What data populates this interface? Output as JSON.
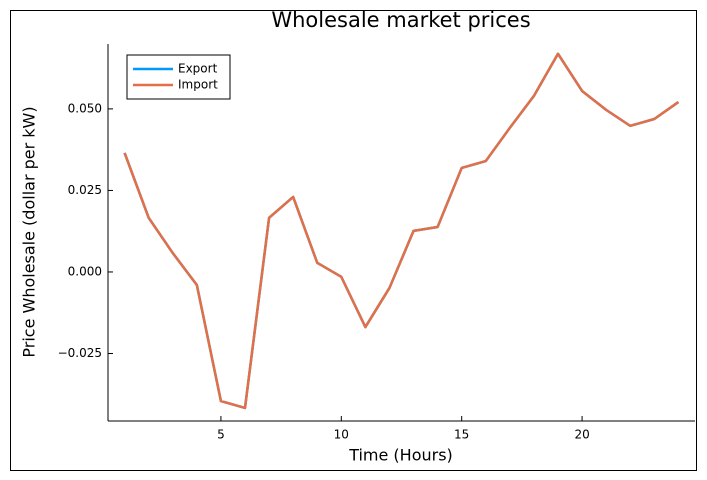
{
  "chart_data": {
    "type": "line",
    "title": "Wholesale market prices",
    "x_label": "Time (Hours)",
    "y_label": "Price Wholesale (dollar per kW)",
    "x": [
      1,
      2,
      3,
      4,
      5,
      6,
      7,
      8,
      9,
      10,
      11,
      12,
      13,
      14,
      15,
      16,
      17,
      18,
      19,
      20,
      21,
      22,
      23,
      24
    ],
    "series": [
      {
        "name": "Export",
        "color": "#009af9",
        "values": [
          0.0365,
          0.0166,
          0.0058,
          -0.004,
          -0.0396,
          -0.0417,
          0.0166,
          0.023,
          0.0028,
          -0.0015,
          -0.0169,
          -0.0049,
          0.0126,
          0.0138,
          0.0319,
          0.034,
          0.0442,
          0.054,
          0.0669,
          0.0555,
          0.0497,
          0.0448,
          0.0469,
          0.0521
        ]
      },
      {
        "name": "Import",
        "color": "#e26f46",
        "values": [
          0.0365,
          0.0166,
          0.0058,
          -0.004,
          -0.0396,
          -0.0417,
          0.0166,
          0.023,
          0.0028,
          -0.0015,
          -0.0169,
          -0.0049,
          0.0126,
          0.0138,
          0.0319,
          0.034,
          0.0442,
          0.054,
          0.0669,
          0.0555,
          0.0497,
          0.0448,
          0.0469,
          0.0521
        ]
      }
    ],
    "xlim": [
      0.31,
      24.69
    ],
    "ylim": [
      -0.0457,
      0.0699
    ],
    "xticks": [
      5,
      10,
      15,
      20
    ],
    "yticks": [
      {
        "value": -0.025,
        "label": "−0.025"
      },
      {
        "value": 0,
        "label": "0.000"
      },
      {
        "value": 0.025,
        "label": "0.025"
      },
      {
        "value": 0.05,
        "label": "0.050"
      }
    ],
    "grid": false,
    "legend": "top-left"
  }
}
